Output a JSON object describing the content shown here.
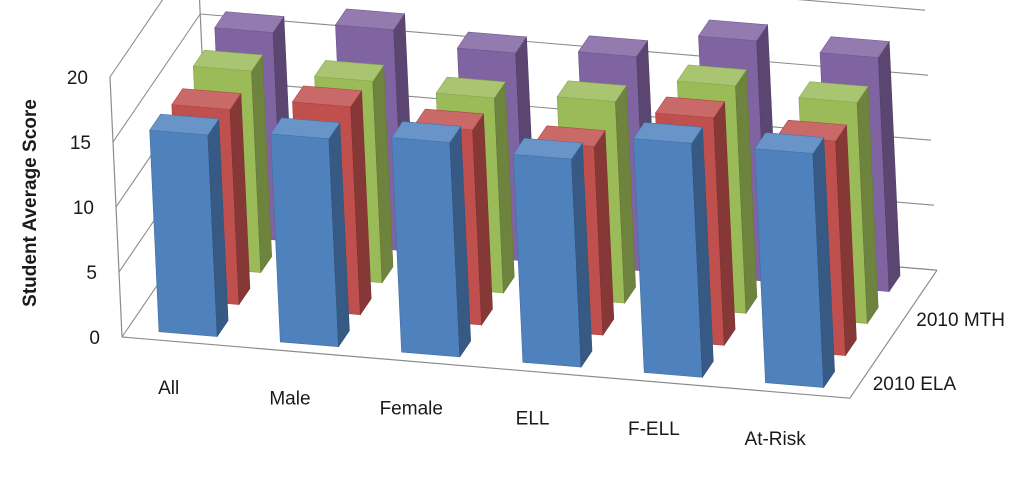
{
  "chart_data": {
    "type": "bar",
    "ylabel": "Student Average Score",
    "ylim": [
      0,
      20
    ],
    "yticks": [
      "0",
      "5",
      "10",
      "15",
      "20"
    ],
    "grid": true,
    "categories": [
      "All",
      "Male",
      "Female",
      "ELL",
      "F-ELL",
      "At-Risk"
    ],
    "series_axis_labels": [
      "2010 MTH",
      "2010 ELA"
    ],
    "series": [
      {
        "color": "#4f81bd",
        "values": [
          15.5,
          16.0,
          16.5,
          16.0,
          18.0,
          18.0
        ]
      },
      {
        "color": "#c0504d",
        "values": [
          15.0,
          16.0,
          15.0,
          14.5,
          17.5,
          16.5
        ]
      },
      {
        "color": "#9bbb59",
        "values": [
          15.5,
          15.5,
          15.0,
          15.5,
          17.5,
          17.0
        ]
      },
      {
        "color": "#8064a2",
        "values": [
          16.0,
          17.0,
          16.0,
          16.5,
          18.5,
          18.0
        ]
      }
    ]
  }
}
